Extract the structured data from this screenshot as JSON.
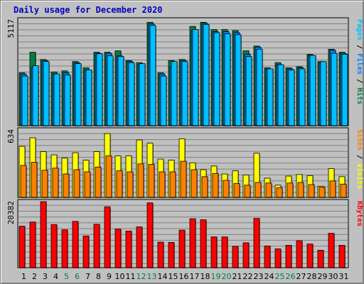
{
  "page": {
    "title": "Daily usage for December 2020"
  },
  "chart_data": [
    {
      "type": "bar",
      "panel": "hits",
      "ymax_label": "5117",
      "ylim": [
        0,
        5117
      ],
      "grid": true,
      "categories": [
        "1",
        "2",
        "3",
        "4",
        "5",
        "6",
        "7",
        "8",
        "9",
        "10",
        "11",
        "12",
        "13",
        "14",
        "15",
        "16",
        "17",
        "18",
        "19",
        "20",
        "21",
        "22",
        "23",
        "24",
        "25",
        "26",
        "27",
        "28",
        "29",
        "30",
        "31"
      ],
      "category_colors": [
        "#000000",
        "#000000",
        "#000000",
        "#000000",
        "#008040",
        "#008040",
        "#000000",
        "#000000",
        "#000000",
        "#000000",
        "#000000",
        "#008040",
        "#008040",
        "#000000",
        "#000000",
        "#000000",
        "#000000",
        "#000000",
        "#008040",
        "#008040",
        "#000000",
        "#000000",
        "#000000",
        "#000000",
        "#008040",
        "#008040",
        "#000000",
        "#000000",
        "#000000",
        "#000000",
        "#000000"
      ],
      "legend": [
        {
          "name": "Pages",
          "color": "#00c0ff"
        },
        {
          "name": " / ",
          "color": "#000000"
        },
        {
          "name": "Files",
          "color": "#0080ff"
        },
        {
          "name": " / ",
          "color": "#000000"
        },
        {
          "name": "Hits",
          "color": "#008040"
        }
      ],
      "series": [
        {
          "name": "Hits",
          "color": "#008040",
          "values": [
            2550,
            3550,
            3200,
            2600,
            2650,
            3100,
            2800,
            3550,
            3550,
            3620,
            3150,
            3050,
            5000,
            2550,
            3150,
            3200,
            4800,
            5000,
            4650,
            4650,
            4600,
            3620,
            3850,
            2800,
            3050,
            2800,
            2850,
            3450,
            3100,
            3700,
            3550
          ]
        },
        {
          "name": "Files",
          "color": "#0080ff",
          "values": [
            2500,
            2800,
            3150,
            2500,
            2550,
            3050,
            2700,
            3500,
            3500,
            3380,
            3100,
            2950,
            4920,
            2500,
            2850,
            3150,
            4600,
            4950,
            4550,
            4550,
            4500,
            3450,
            3800,
            2750,
            2950,
            2750,
            2800,
            3400,
            3050,
            3650,
            3500
          ]
        },
        {
          "name": "Pages",
          "color": "#00c0ff",
          "values": [
            2400,
            2900,
            3100,
            2500,
            2450,
            3000,
            2700,
            3480,
            3380,
            3350,
            3050,
            3000,
            4850,
            2400,
            3100,
            3100,
            4650,
            4900,
            4500,
            4450,
            4400,
            3350,
            3700,
            2750,
            2950,
            2700,
            2750,
            3400,
            3100,
            3500,
            3450
          ]
        }
      ]
    },
    {
      "type": "bar",
      "panel": "visits",
      "ymax_label": "634",
      "ylim": [
        0,
        634
      ],
      "grid": true,
      "legend": [
        {
          "name": "Sites",
          "color": "#ff8000"
        },
        {
          "name": " / ",
          "color": "#000000"
        },
        {
          "name": "Visits",
          "color": "#ffff00"
        }
      ],
      "series": [
        {
          "name": "Visits",
          "color": "#ffff00",
          "values": [
            480,
            560,
            430,
            400,
            370,
            420,
            350,
            430,
            600,
            390,
            390,
            540,
            510,
            360,
            350,
            550,
            325,
            260,
            295,
            220,
            250,
            210,
            415,
            180,
            115,
            200,
            215,
            205,
            105,
            270,
            195
          ]
        },
        {
          "name": "Sites",
          "color": "#ff8000",
          "values": [
            300,
            330,
            255,
            275,
            220,
            260,
            240,
            285,
            390,
            250,
            240,
            315,
            310,
            240,
            240,
            340,
            260,
            195,
            225,
            160,
            130,
            115,
            140,
            135,
            90,
            135,
            140,
            120,
            95,
            155,
            125
          ]
        }
      ]
    },
    {
      "type": "bar",
      "panel": "kbytes",
      "ymax_label": "20382",
      "ylim": [
        0,
        20382
      ],
      "grid": true,
      "legend": [
        {
          "name": "KBytes",
          "color": "#ff0000"
        }
      ],
      "series": [
        {
          "name": "KBytes",
          "color": "#ff0000",
          "values": [
            12800,
            14100,
            20382,
            13300,
            11700,
            14300,
            9800,
            13400,
            18800,
            11900,
            11300,
            12600,
            20000,
            7900,
            7800,
            11600,
            15100,
            14800,
            9500,
            9500,
            6600,
            7700,
            15200,
            6700,
            5800,
            6900,
            8300,
            7300,
            5400,
            10600,
            6900
          ]
        }
      ]
    }
  ]
}
